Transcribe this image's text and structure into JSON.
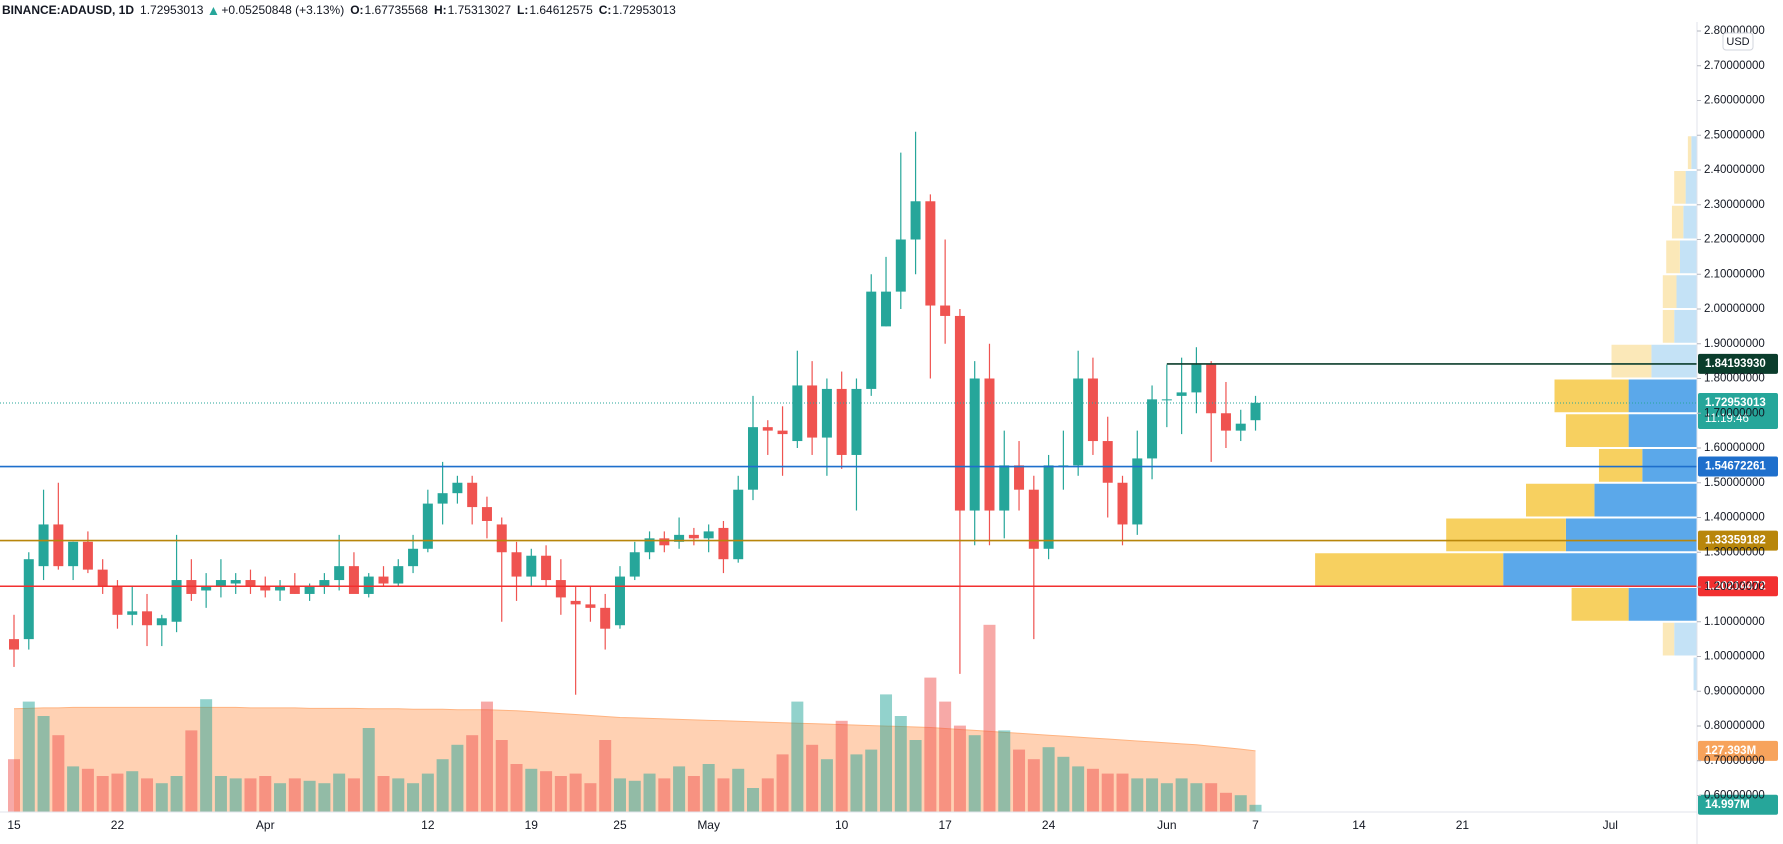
{
  "chart_data": {
    "type": "candlestick",
    "header": {
      "symbol": "BINANCE:ADAUSD, 1D",
      "price": "1.72953013",
      "change": "+0.05250848 (+3.13%)",
      "ohlc": [
        {
          "label": "O:",
          "value": "1.67735568"
        },
        {
          "label": "H:",
          "value": "1.75313027"
        },
        {
          "label": "L:",
          "value": "1.64612575"
        },
        {
          "label": "C:",
          "value": "1.72953013"
        }
      ]
    },
    "currency": "USD",
    "up_color": "#26a69a",
    "down_color": "#ef5350",
    "open": [
      1.05,
      1.05,
      1.26,
      1.38,
      1.26,
      1.33,
      1.25,
      1.2,
      1.12,
      1.13,
      1.09,
      1.1,
      1.22,
      1.19,
      1.2,
      1.21,
      1.22,
      1.2,
      1.19,
      1.2,
      1.18,
      1.2,
      1.22,
      1.26,
      1.18,
      1.23,
      1.21,
      1.26,
      1.31,
      1.44,
      1.47,
      1.5,
      1.43,
      1.38,
      1.3,
      1.23,
      1.29,
      1.22,
      1.16,
      1.15,
      1.14,
      1.09,
      1.23,
      1.3,
      1.34,
      1.33,
      1.35,
      1.34,
      1.37,
      1.28,
      1.48,
      1.66,
      1.65,
      1.62,
      1.78,
      1.63,
      1.77,
      1.58,
      1.77,
      1.95,
      2.05,
      2.2,
      2.31,
      2.01,
      1.98,
      1.42,
      1.8,
      1.42,
      1.55,
      1.48,
      1.31,
      1.55,
      1.55,
      1.8,
      1.62,
      1.5,
      1.38,
      1.57,
      1.74,
      1.75,
      1.76,
      1.84,
      1.7,
      1.65,
      1.68
    ],
    "high": [
      1.12,
      1.3,
      1.48,
      1.5,
      1.33,
      1.36,
      1.28,
      1.22,
      1.2,
      1.18,
      1.12,
      1.35,
      1.28,
      1.24,
      1.28,
      1.24,
      1.25,
      1.23,
      1.22,
      1.24,
      1.21,
      1.24,
      1.35,
      1.3,
      1.24,
      1.26,
      1.28,
      1.35,
      1.48,
      1.56,
      1.52,
      1.52,
      1.46,
      1.4,
      1.33,
      1.31,
      1.32,
      1.28,
      1.2,
      1.2,
      1.18,
      1.26,
      1.33,
      1.36,
      1.36,
      1.4,
      1.37,
      1.38,
      1.39,
      1.52,
      1.75,
      1.68,
      1.72,
      1.88,
      1.85,
      1.8,
      1.82,
      1.8,
      2.1,
      2.15,
      2.45,
      2.51,
      2.33,
      2.2,
      2.0,
      1.85,
      1.9,
      1.65,
      1.62,
      1.52,
      1.58,
      1.65,
      1.88,
      1.86,
      1.69,
      1.52,
      1.65,
      1.78,
      1.84,
      1.86,
      1.89,
      1.85,
      1.79,
      1.71,
      1.75
    ],
    "low": [
      0.97,
      1.02,
      1.22,
      1.25,
      1.22,
      1.24,
      1.18,
      1.08,
      1.09,
      1.03,
      1.03,
      1.07,
      1.16,
      1.14,
      1.17,
      1.18,
      1.18,
      1.17,
      1.16,
      1.18,
      1.16,
      1.18,
      1.19,
      1.19,
      1.17,
      1.2,
      1.2,
      1.24,
      1.3,
      1.38,
      1.44,
      1.38,
      1.34,
      1.1,
      1.16,
      1.2,
      1.2,
      1.12,
      0.89,
      1.1,
      1.02,
      1.08,
      1.22,
      1.28,
      1.3,
      1.31,
      1.32,
      1.3,
      1.24,
      1.27,
      1.45,
      1.58,
      1.52,
      1.6,
      1.58,
      1.52,
      1.54,
      1.42,
      1.75,
      1.95,
      2.0,
      2.1,
      1.8,
      1.9,
      0.95,
      1.32,
      1.32,
      1.34,
      1.42,
      1.05,
      1.28,
      1.48,
      1.52,
      1.58,
      1.4,
      1.32,
      1.35,
      1.51,
      1.66,
      1.64,
      1.7,
      1.56,
      1.6,
      1.62,
      1.65
    ],
    "close": [
      1.02,
      1.28,
      1.38,
      1.26,
      1.33,
      1.25,
      1.2,
      1.12,
      1.13,
      1.09,
      1.11,
      1.22,
      1.18,
      1.2,
      1.22,
      1.22,
      1.2,
      1.19,
      1.2,
      1.18,
      1.2,
      1.22,
      1.26,
      1.18,
      1.23,
      1.21,
      1.26,
      1.31,
      1.44,
      1.47,
      1.5,
      1.43,
      1.39,
      1.3,
      1.23,
      1.29,
      1.22,
      1.17,
      1.15,
      1.14,
      1.08,
      1.23,
      1.3,
      1.34,
      1.32,
      1.35,
      1.34,
      1.36,
      1.28,
      1.48,
      1.66,
      1.65,
      1.64,
      1.78,
      1.63,
      1.77,
      1.58,
      1.77,
      2.05,
      2.05,
      2.2,
      2.31,
      2.01,
      1.98,
      1.42,
      1.8,
      1.42,
      1.55,
      1.48,
      1.31,
      1.55,
      1.55,
      1.8,
      1.62,
      1.5,
      1.38,
      1.57,
      1.74,
      1.74,
      1.76,
      1.84,
      1.7,
      1.65,
      1.67,
      1.73
    ],
    "volume": [
      110,
      230,
      200,
      160,
      95,
      90,
      75,
      80,
      85,
      70,
      60,
      75,
      170,
      235,
      75,
      70,
      70,
      75,
      60,
      70,
      65,
      60,
      80,
      70,
      175,
      75,
      70,
      60,
      80,
      110,
      140,
      160,
      230,
      150,
      100,
      90,
      85,
      75,
      80,
      60,
      150,
      70,
      65,
      80,
      70,
      95,
      75,
      100,
      70,
      90,
      50,
      70,
      120,
      230,
      140,
      110,
      190,
      120,
      130,
      245,
      200,
      150,
      280,
      230,
      180,
      160,
      390,
      170,
      130,
      110,
      135,
      115,
      95,
      90,
      80,
      80,
      70,
      70,
      60,
      70,
      60,
      60,
      40,
      35,
      14.997
    ],
    "volume_ma": [
      215,
      216,
      217,
      217,
      218,
      218,
      218,
      218,
      218,
      218,
      218,
      218,
      218,
      218,
      218,
      218,
      217,
      217,
      217,
      217,
      216,
      216,
      216,
      216,
      215,
      215,
      215,
      214,
      214,
      214,
      213,
      213,
      213,
      212,
      211,
      209,
      207,
      205,
      203,
      201,
      199,
      197,
      196,
      195,
      194,
      193,
      192,
      191,
      190,
      189,
      188,
      187,
      186,
      185,
      184,
      183,
      182,
      181,
      180,
      179,
      178,
      177,
      176,
      174,
      172,
      170,
      168,
      166,
      164,
      162,
      160,
      158,
      156,
      154,
      152,
      150,
      148,
      146,
      144,
      142,
      140,
      137,
      134,
      131,
      127.393
    ],
    "volume_ma_color": "#ffb380",
    "volume_labels": [
      {
        "value": 127.393,
        "label": "127.393M",
        "color": "#f7a35c"
      },
      {
        "value": 14.997,
        "label": "14.997M",
        "color": "#26a69a"
      }
    ],
    "ylim": [
      0.6,
      2.8
    ],
    "yticks": [
      {
        "value": 0.6,
        "label": "0.60000000"
      },
      {
        "value": 0.7,
        "label": "0.70000000"
      },
      {
        "value": 0.8,
        "label": "0.80000000"
      },
      {
        "value": 0.9,
        "label": "0.90000000"
      },
      {
        "value": 1.0,
        "label": "1.00000000"
      },
      {
        "value": 1.1,
        "label": "1.10000000"
      },
      {
        "value": 1.2,
        "label": "1.20000000"
      },
      {
        "value": 1.3,
        "label": "1.30000000"
      },
      {
        "value": 1.4,
        "label": "1.40000000"
      },
      {
        "value": 1.5,
        "label": "1.50000000"
      },
      {
        "value": 1.6,
        "label": "1.60000000"
      },
      {
        "value": 1.7,
        "label": "1.70000000"
      },
      {
        "value": 1.8,
        "label": "1.80000000"
      },
      {
        "value": 1.9,
        "label": "1.90000000"
      },
      {
        "value": 2.0,
        "label": "2.00000000"
      },
      {
        "value": 2.1,
        "label": "2.10000000"
      },
      {
        "value": 2.2,
        "label": "2.20000000"
      },
      {
        "value": 2.3,
        "label": "2.30000000"
      },
      {
        "value": 2.4,
        "label": "2.40000000"
      },
      {
        "value": 2.5,
        "label": "2.50000000"
      },
      {
        "value": 2.6,
        "label": "2.60000000"
      },
      {
        "value": 2.7,
        "label": "2.70000000"
      },
      {
        "value": 2.8,
        "label": "2.80000000"
      }
    ],
    "xticks": [
      {
        "value": 0,
        "label": "15"
      },
      {
        "value": 7,
        "label": "22"
      },
      {
        "value": 17,
        "label": "Apr"
      },
      {
        "value": 28,
        "label": "12"
      },
      {
        "value": 35,
        "label": "19"
      },
      {
        "value": 41,
        "label": "25"
      },
      {
        "value": 47,
        "label": "May"
      },
      {
        "value": 56,
        "label": "10"
      },
      {
        "value": 63,
        "label": "17"
      },
      {
        "value": 70,
        "label": "24"
      },
      {
        "value": 78,
        "label": "Jun"
      },
      {
        "value": 84,
        "label": "7"
      },
      {
        "value": 91,
        "label": "14"
      },
      {
        "value": 98,
        "label": "21"
      },
      {
        "value": 108,
        "label": "Jul"
      }
    ],
    "grid": true,
    "levels": [
      {
        "value": 1.8419393,
        "label": "1.84193930",
        "color": "#0b3d2c",
        "start": 78
      },
      {
        "value": 1.54672261,
        "label": "1.54672261",
        "color": "#1e6fcc",
        "start": -2
      },
      {
        "value": 1.33359182,
        "label": "1.33359182",
        "color": "#b8860b",
        "start": -2
      },
      {
        "value": 1.20214472,
        "label": "1.20214472",
        "color": "#f23030",
        "start": -2
      }
    ],
    "last_price": {
      "value": 1.72953013,
      "label": "1.72953013",
      "countdown": "11:19:46",
      "color": "#26a69a"
    },
    "volume_profile": {
      "bins": [
        0.9,
        1.0,
        1.1,
        1.2,
        1.3,
        1.4,
        1.5,
        1.6,
        1.7,
        1.8,
        1.9,
        2.0,
        2.1,
        2.2,
        2.3,
        2.4,
        2.5
      ],
      "up": [
        3,
        20,
        60,
        170,
        115,
        90,
        48,
        60,
        60,
        40,
        20,
        18,
        15,
        12,
        10,
        5
      ],
      "down": [
        0,
        10,
        50,
        165,
        105,
        60,
        38,
        55,
        65,
        35,
        10,
        12,
        12,
        10,
        10,
        3
      ],
      "value_area": [
        1.1,
        1.8
      ],
      "up_color": "#5ba8ea",
      "down_color": "#f7d060",
      "up_color_outside": "#c4e2f6",
      "down_color_outside": "#fbe8b8"
    }
  }
}
